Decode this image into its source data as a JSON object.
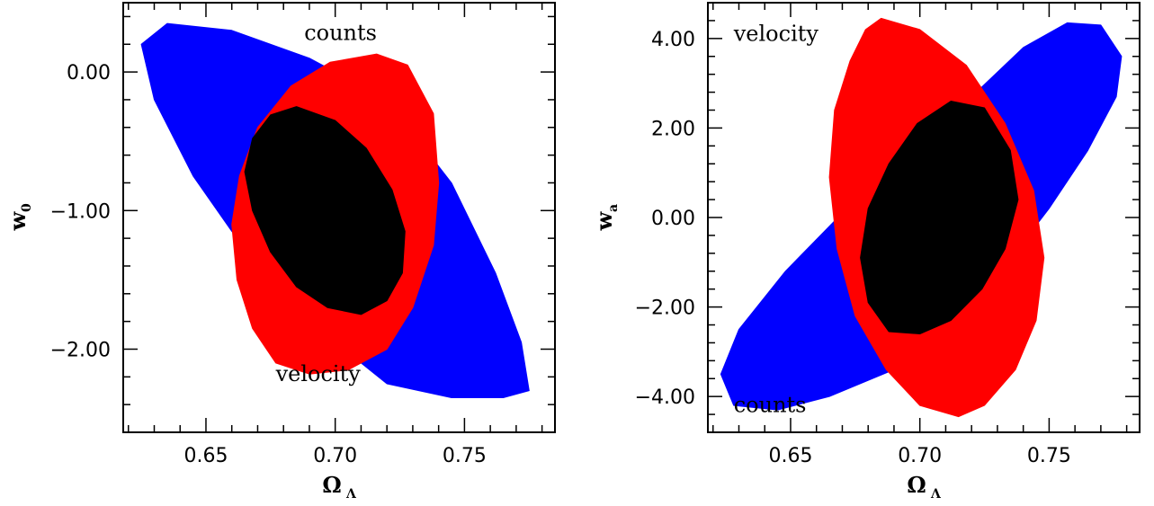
{
  "chart_data": [
    {
      "type": "contour",
      "xlabel": "Ω",
      "xlabel_sub": "Λ",
      "ylabel": "w",
      "ylabel_sub": "0",
      "xlim": [
        0.618,
        0.785
      ],
      "ylim": [
        -2.6,
        0.5
      ],
      "x_ticks": [
        "0.65",
        "0.70",
        "0.75"
      ],
      "x_tick_values": [
        0.65,
        0.7,
        0.75
      ],
      "y_ticks": [
        "0.00",
        "−1.00",
        "−2.00"
      ],
      "y_tick_values": [
        0.0,
        -1.0,
        -2.0
      ],
      "annotations": [
        {
          "text": "counts",
          "x": 0.688,
          "y": 0.23
        },
        {
          "text": "velocity",
          "x": 0.677,
          "y": -2.23
        }
      ],
      "regions": [
        {
          "color": "#0000ff",
          "polygon": [
            [
              0.635,
              0.35
            ],
            [
              0.66,
              0.3
            ],
            [
              0.69,
              0.1
            ],
            [
              0.72,
              -0.2
            ],
            [
              0.745,
              -0.8
            ],
            [
              0.762,
              -1.45
            ],
            [
              0.772,
              -1.95
            ],
            [
              0.775,
              -2.3
            ],
            [
              0.765,
              -2.35
            ],
            [
              0.745,
              -2.35
            ],
            [
              0.72,
              -2.25
            ],
            [
              0.7,
              -1.95
            ],
            [
              0.69,
              -1.75
            ],
            [
              0.66,
              -1.15
            ],
            [
              0.645,
              -0.75
            ],
            [
              0.63,
              -0.2
            ],
            [
              0.625,
              0.2
            ]
          ]
        },
        {
          "color": "#ff0000",
          "polygon": [
            [
              0.716,
              0.13
            ],
            [
              0.728,
              0.05
            ],
            [
              0.738,
              -0.3
            ],
            [
              0.74,
              -0.8
            ],
            [
              0.738,
              -1.25
            ],
            [
              0.73,
              -1.7
            ],
            [
              0.72,
              -2.0
            ],
            [
              0.705,
              -2.15
            ],
            [
              0.69,
              -2.18
            ],
            [
              0.677,
              -2.1
            ],
            [
              0.668,
              -1.85
            ],
            [
              0.662,
              -1.5
            ],
            [
              0.66,
              -1.1
            ],
            [
              0.663,
              -0.75
            ],
            [
              0.67,
              -0.4
            ],
            [
              0.683,
              -0.1
            ],
            [
              0.698,
              0.07
            ]
          ]
        },
        {
          "color": "#000000",
          "polygon": [
            [
              0.685,
              -0.25
            ],
            [
              0.7,
              -0.35
            ],
            [
              0.712,
              -0.55
            ],
            [
              0.722,
              -0.85
            ],
            [
              0.727,
              -1.15
            ],
            [
              0.726,
              -1.45
            ],
            [
              0.72,
              -1.65
            ],
            [
              0.71,
              -1.75
            ],
            [
              0.697,
              -1.7
            ],
            [
              0.685,
              -1.55
            ],
            [
              0.675,
              -1.3
            ],
            [
              0.668,
              -1.0
            ],
            [
              0.665,
              -0.72
            ],
            [
              0.668,
              -0.48
            ],
            [
              0.675,
              -0.31
            ]
          ]
        }
      ]
    },
    {
      "type": "contour",
      "xlabel": "Ω",
      "xlabel_sub": "Λ",
      "ylabel": "w",
      "ylabel_sub": "a",
      "xlim": [
        0.618,
        0.785
      ],
      "ylim": [
        -4.8,
        4.8
      ],
      "x_ticks": [
        "0.65",
        "0.70",
        "0.75"
      ],
      "x_tick_values": [
        0.65,
        0.7,
        0.75
      ],
      "y_ticks": [
        "4.00",
        "2.00",
        "0.00",
        "−2.00",
        "−4.00"
      ],
      "y_tick_values": [
        4.0,
        2.0,
        0.0,
        -2.0,
        -4.0
      ],
      "annotations": [
        {
          "text": "velocity",
          "x": 0.628,
          "y": 3.95
        },
        {
          "text": "counts",
          "x": 0.628,
          "y": -4.35
        }
      ],
      "regions": [
        {
          "color": "#0000ff",
          "polygon": [
            [
              0.757,
              4.35
            ],
            [
              0.77,
              4.3
            ],
            [
              0.778,
              3.6
            ],
            [
              0.776,
              2.7
            ],
            [
              0.765,
              1.5
            ],
            [
              0.75,
              0.2
            ],
            [
              0.73,
              -1.3
            ],
            [
              0.71,
              -2.4
            ],
            [
              0.69,
              -3.4
            ],
            [
              0.665,
              -4.0
            ],
            [
              0.645,
              -4.3
            ],
            [
              0.628,
              -4.2
            ],
            [
              0.623,
              -3.5
            ],
            [
              0.63,
              -2.5
            ],
            [
              0.648,
              -1.2
            ],
            [
              0.67,
              0.1
            ],
            [
              0.695,
              1.4
            ],
            [
              0.72,
              2.7
            ],
            [
              0.74,
              3.8
            ]
          ]
        },
        {
          "color": "#ff0000",
          "polygon": [
            [
              0.685,
              4.45
            ],
            [
              0.7,
              4.2
            ],
            [
              0.718,
              3.4
            ],
            [
              0.733,
              2.1
            ],
            [
              0.744,
              0.6
            ],
            [
              0.748,
              -0.9
            ],
            [
              0.745,
              -2.3
            ],
            [
              0.737,
              -3.4
            ],
            [
              0.725,
              -4.2
            ],
            [
              0.715,
              -4.45
            ],
            [
              0.7,
              -4.2
            ],
            [
              0.687,
              -3.4
            ],
            [
              0.675,
              -2.2
            ],
            [
              0.668,
              -0.7
            ],
            [
              0.665,
              0.9
            ],
            [
              0.667,
              2.4
            ],
            [
              0.673,
              3.5
            ],
            [
              0.679,
              4.2
            ]
          ]
        },
        {
          "color": "#000000",
          "polygon": [
            [
              0.712,
              2.6
            ],
            [
              0.725,
              2.45
            ],
            [
              0.735,
              1.5
            ],
            [
              0.738,
              0.4
            ],
            [
              0.733,
              -0.7
            ],
            [
              0.724,
              -1.6
            ],
            [
              0.712,
              -2.3
            ],
            [
              0.7,
              -2.6
            ],
            [
              0.688,
              -2.55
            ],
            [
              0.68,
              -1.9
            ],
            [
              0.677,
              -0.9
            ],
            [
              0.68,
              0.2
            ],
            [
              0.688,
              1.2
            ],
            [
              0.699,
              2.1
            ]
          ]
        }
      ]
    }
  ]
}
